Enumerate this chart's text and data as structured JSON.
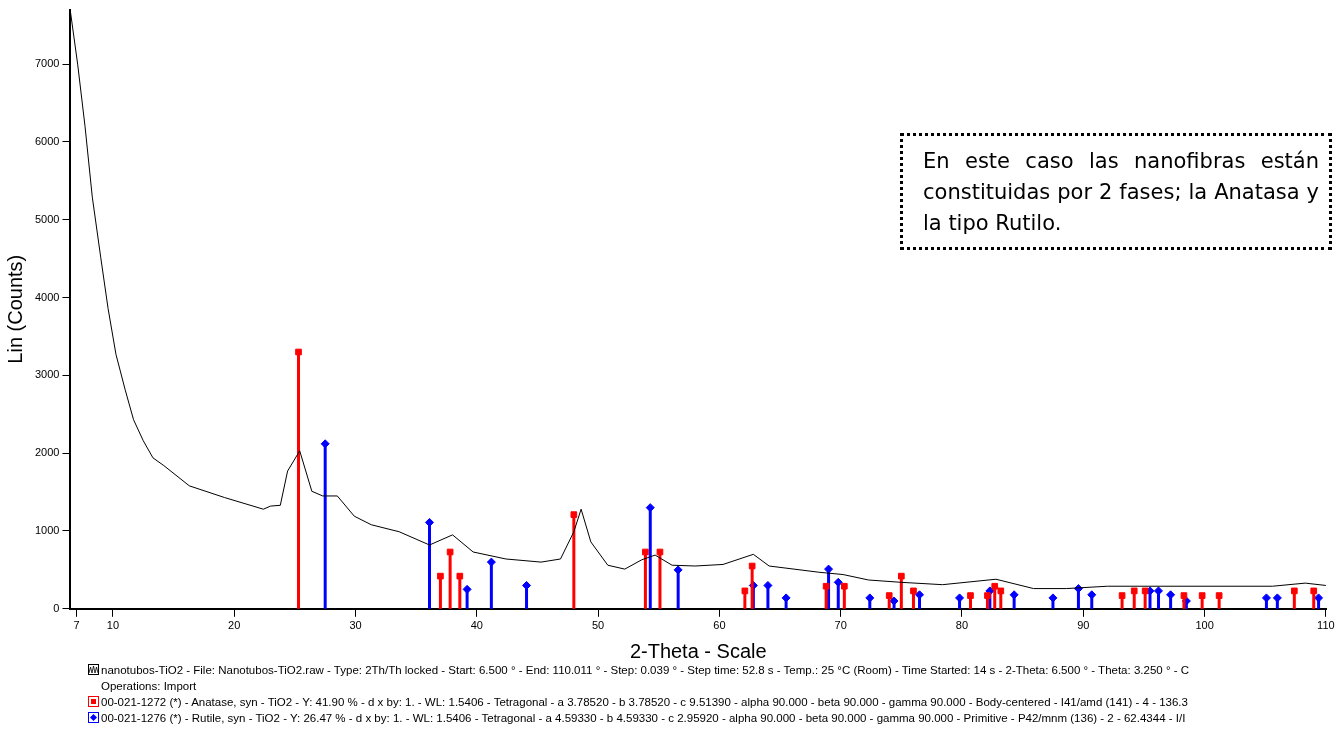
{
  "chart_data": {
    "type": "line",
    "xlabel": "2-Theta - Scale",
    "ylabel": "Lin (Counts)",
    "xlim": [
      6.5,
      110.011
    ],
    "ylim": [
      0,
      7700
    ],
    "xticks": [
      7,
      10,
      20,
      30,
      40,
      50,
      60,
      70,
      80,
      90,
      100,
      110
    ],
    "yticks": [
      0,
      1000,
      2000,
      3000,
      4000,
      5000,
      6000,
      7000
    ],
    "grid": false,
    "legend": "bottom",
    "annotations": [
      "En este caso las nanofibras están constituidas por 2 fases; la Anatasa y la tipo Rutilo."
    ],
    "series": [
      {
        "name": "nanotubos-TiO2 - File: Nanotubos-TiO2.raw - Type: 2Th/Th locked - Start: 6.500 ° - End: 110.011 ° - Step: 0.039 ° - Step time: 52.8 s - Temp.: 25 °C (Room) - Time Started: 14 s - 2-Theta: 6.500 ° - Theta: 3.250 ° - C\nOperations: Import",
        "type": "line",
        "color": "#000000",
        "marker": "none",
        "x": [
          6.5,
          7.1,
          7.7,
          8.3,
          9.0,
          9.6,
          10.25,
          11.0,
          11.7,
          12.5,
          13.3,
          14.2,
          16.3,
          19.2,
          22.4,
          23.0,
          23.8,
          24.4,
          25.4,
          26.4,
          27.3,
          28.5,
          29.9,
          31.3,
          33.6,
          36.1,
          38.0,
          39.7,
          42.4,
          45.3,
          46.9,
          48.0,
          48.6,
          49.4,
          50.8,
          52.2,
          53.6,
          54.7,
          56.1,
          58.0,
          60.3,
          62.8,
          64.1,
          68.2,
          70.2,
          72.3,
          75.0,
          78.4,
          82.8,
          85.9,
          88.6,
          92.0,
          98.8,
          105.6,
          108.3,
          110.0
        ],
        "values": [
          7670,
          6990,
          6200,
          5290,
          4510,
          3860,
          3270,
          2820,
          2430,
          2160,
          1940,
          1840,
          1580,
          1430,
          1280,
          1320,
          1330,
          1770,
          2030,
          1510,
          1450,
          1450,
          1190,
          1080,
          990,
          820,
          950,
          730,
          640,
          600,
          640,
          990,
          1280,
          860,
          560,
          510,
          630,
          690,
          560,
          550,
          570,
          700,
          550,
          470,
          440,
          370,
          340,
          310,
          380,
          260,
          260,
          290,
          290,
          290,
          330,
          300
        ]
      },
      {
        "name": "00-021-1272 (*) - Anatase, syn - TiO2 - Y: 41.90 % - d x by: 1. - WL: 1.5406 - Tetragonal - a 3.78520 - b 3.78520 - c 9.51390 - alpha 90.000 - beta 90.000 - gamma 90.000 - Body-centered - I41/amd (141) - 4 - 136.3",
        "type": "lollipop",
        "color": "#ff0000",
        "marker": "square",
        "x": [
          25.3,
          37.0,
          37.8,
          38.6,
          48.0,
          53.9,
          55.1,
          62.1,
          62.7,
          68.8,
          70.3,
          74.0,
          75.0,
          76.0,
          80.7,
          82.1,
          82.7,
          83.2,
          93.2,
          94.2,
          95.1,
          98.3,
          99.8,
          101.2,
          107.4,
          109.0
        ],
        "values": [
          3300,
          420,
          730,
          420,
          1210,
          730,
          730,
          230,
          550,
          290,
          290,
          170,
          420,
          230,
          170,
          170,
          290,
          230,
          170,
          230,
          230,
          170,
          170,
          170,
          230,
          230
        ]
      },
      {
        "name": "00-021-1276 (*) - Rutile, syn - TiO2 - Y: 26.47 % - d x by: 1. - WL: 1.5406 - Tetragonal - a 4.59330 - b 4.59330 - c 2.95920 - alpha 90.000 - beta 90.000 - gamma 90.000 - Primitive - P42/mnm (136) - 2 - 62.4344 - I/I",
        "type": "lollipop",
        "color": "#0000ff",
        "marker": "diamond",
        "x": [
          27.5,
          36.1,
          39.2,
          41.2,
          44.1,
          54.3,
          56.6,
          62.8,
          64.0,
          65.5,
          69.0,
          69.8,
          72.4,
          74.4,
          76.5,
          79.8,
          82.3,
          84.3,
          87.5,
          89.6,
          90.7,
          95.5,
          96.2,
          97.2,
          98.5,
          105.1,
          106.0,
          109.4
        ],
        "values": [
          2120,
          1110,
          250,
          600,
          300,
          1300,
          500,
          300,
          300,
          140,
          510,
          340,
          140,
          100,
          180,
          140,
          230,
          180,
          140,
          260,
          180,
          230,
          230,
          180,
          100,
          140,
          140,
          140
        ]
      }
    ]
  }
}
